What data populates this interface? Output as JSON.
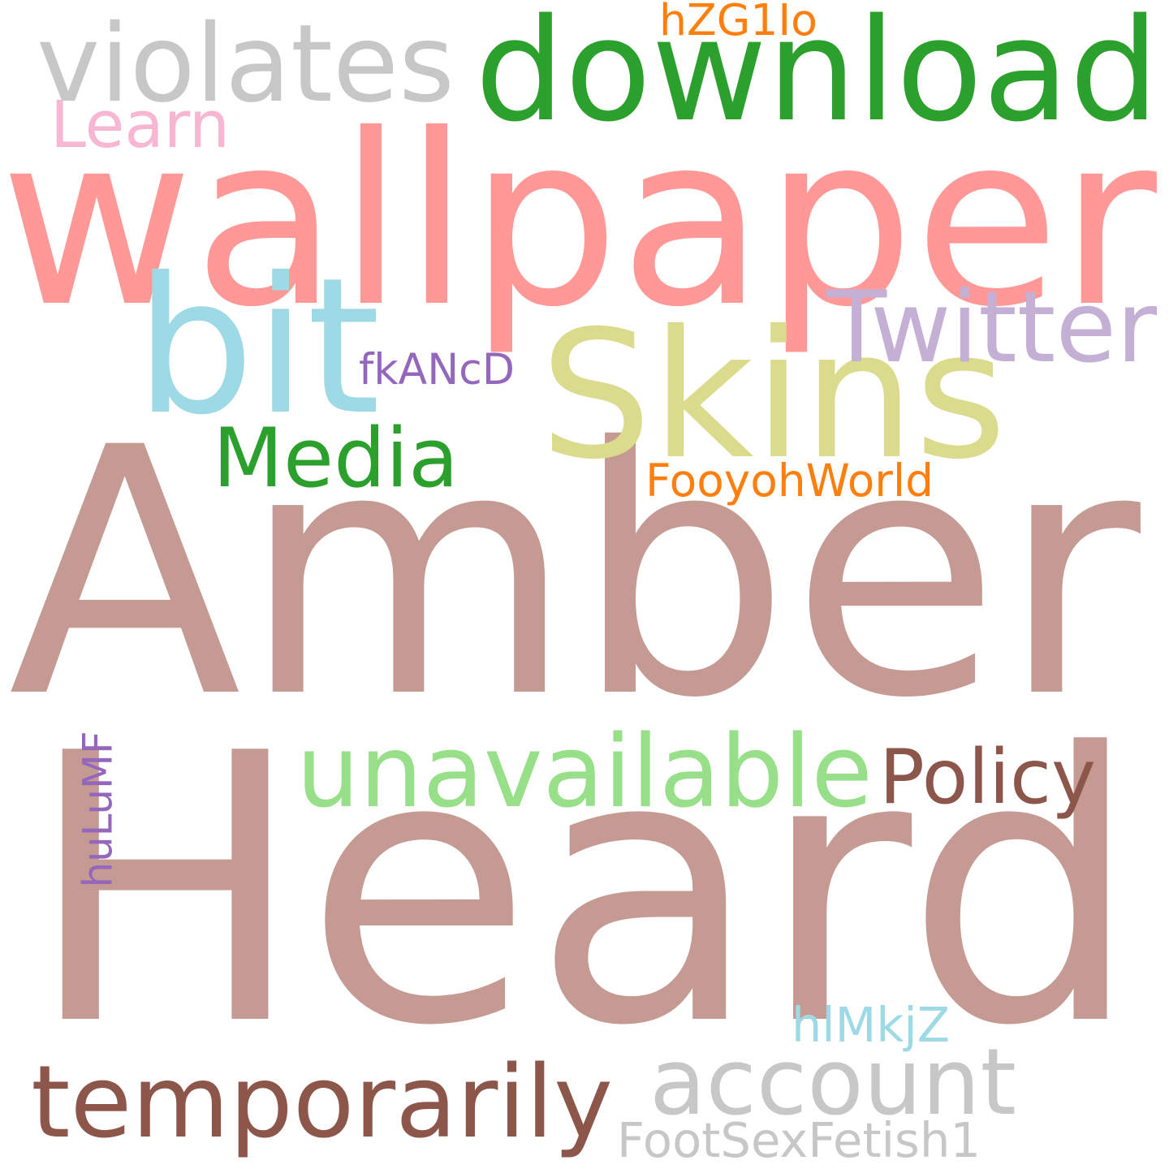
{
  "words": [
    {
      "text": "Amber",
      "color": "#c49a92"
    },
    {
      "text": "Heard",
      "color": "#c49a92"
    },
    {
      "text": "wallpaper",
      "color": "#ff9896"
    },
    {
      "text": "download",
      "color": "#2ca02c"
    },
    {
      "text": "Skins",
      "color": "#dbdb8d"
    },
    {
      "text": "bit",
      "color": "#9edae5"
    },
    {
      "text": "violates",
      "color": "#c7c7c7"
    },
    {
      "text": "Twitter",
      "color": "#c5b0d5"
    },
    {
      "text": "Media",
      "color": "#2ca02c"
    },
    {
      "text": "unavailable",
      "color": "#98df8a"
    },
    {
      "text": "Policy",
      "color": "#8c564b"
    },
    {
      "text": "temporarily",
      "color": "#8c564b"
    },
    {
      "text": "account",
      "color": "#c7c7c7"
    },
    {
      "text": "Learn",
      "color": "#f7b6d2"
    },
    {
      "text": "hZG1Io",
      "color": "#ff7f0e"
    },
    {
      "text": "fkANcD",
      "color": "#9467bd"
    },
    {
      "text": "FooyohWorld",
      "color": "#ff7f0e"
    },
    {
      "text": "huLuMF",
      "color": "#9467bd"
    },
    {
      "text": "hlMkjZ",
      "color": "#9edae5"
    },
    {
      "text": "FootSexFetish1",
      "color": "#c7c7c7"
    }
  ]
}
